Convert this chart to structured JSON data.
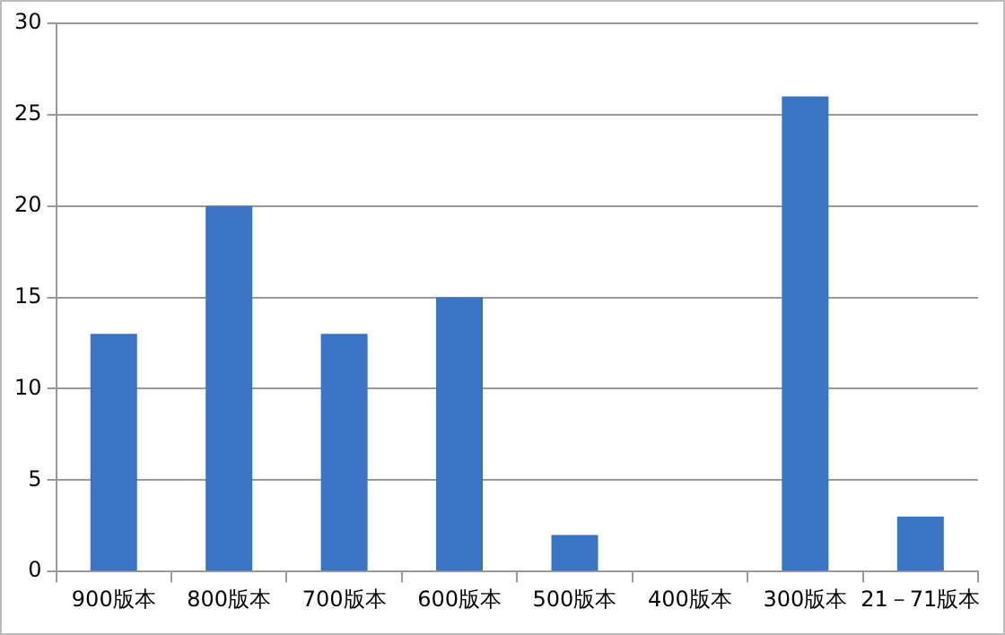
{
  "chart_data": {
    "type": "bar",
    "categories": [
      "900版本",
      "800版本",
      "700版本",
      "600版本",
      "500版本",
      "400版本",
      "300版本",
      "21－71版本"
    ],
    "values": [
      13,
      20,
      13,
      15,
      2,
      0,
      26,
      3
    ],
    "color": "#3a74c2",
    "ylim": [
      0,
      30
    ],
    "yticks": [
      0,
      5,
      10,
      15,
      20,
      25,
      30
    ],
    "grid": "y",
    "legend": false
  }
}
